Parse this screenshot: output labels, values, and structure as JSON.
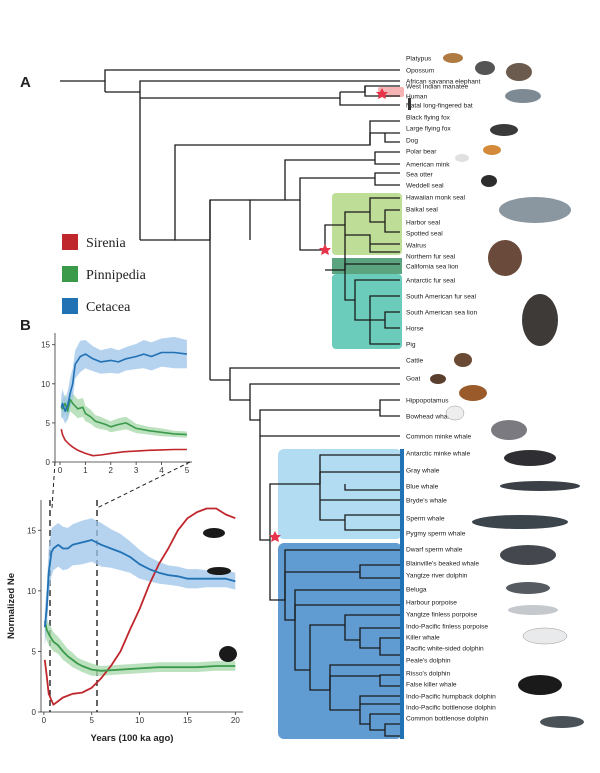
{
  "figure": {
    "panel_a_label": "A",
    "panel_b_label": "B",
    "legend": [
      {
        "name": "Sirenia",
        "color": "#c0272d"
      },
      {
        "name": "Pinnipedia",
        "color": "#3a9a4a"
      },
      {
        "name": "Cetacea",
        "color": "#2171b5"
      }
    ],
    "clade_colors": {
      "sirenia_box": "#f4a6a6",
      "phocidae_box": "#b7d98b",
      "odobenidae_box": "#4a9a72",
      "otariidae_box": "#5cc6b4",
      "mysticeti_box": "#a8d8f0",
      "odontoceti_box": "#4f90cc",
      "branch_marker": "#e8344a"
    },
    "species": [
      "Platypus",
      "Opossum",
      "African savanna elephant",
      "West Indian manatee",
      "Human",
      "Natal long-fingered bat",
      "Black flying fox",
      "Large flying fox",
      "Dog",
      "Polar bear",
      "American mink",
      "Sea otter",
      "Weddell seal",
      "Hawaiian monk seal",
      "Baikal seal",
      "Harbor seal",
      "Spotted seal",
      "Walrus",
      "Northern fur seal",
      "California sea lion",
      "Antarctic fur seal",
      "South American fur seal",
      "South American sea lion",
      "Horse",
      "Pig",
      "Cattle",
      "Goat",
      "Hippopotamus",
      "Bowhead whale",
      "Common minke whale",
      "Antarctic minke whale",
      "Gray whale",
      "Blue whale",
      "Bryde's whale",
      "Sperm whale",
      "Pygmy sperm whale",
      "Dwarf sperm whale",
      "Blainville's beaked whale",
      "Yangtze river dolphin",
      "Beluga",
      "Harbour porpoise",
      "Yangtze finless porpoise",
      "Indo-Pacific finless porpoise",
      "Killer whale",
      "Pacific white-sided dolphin",
      "Peale's dolphin",
      "Risso's dolphin",
      "False killer whale",
      "Indo-Pacific humpback dolphin",
      "Indo-Pacific bottlenose dolphin",
      "Common bottlenose dolphin"
    ]
  },
  "chart_data": [
    {
      "type": "line",
      "id": "inset",
      "title": "",
      "xlabel": "",
      "ylabel": "",
      "xlim": [
        0,
        5.2
      ],
      "ylim": [
        0,
        16.5
      ],
      "xticks": [
        0,
        1,
        2,
        3,
        4,
        5
      ],
      "yticks": [
        0,
        5,
        10,
        15
      ],
      "series": [
        {
          "name": "Sirenia",
          "x": [
            0.05,
            0.1,
            0.2,
            0.35,
            0.5,
            0.7,
            1.0,
            1.3,
            1.6,
            2.0,
            2.5,
            3.0,
            3.5,
            4.0,
            4.5,
            5.0
          ],
          "y": [
            4.2,
            3.5,
            2.8,
            2.3,
            1.9,
            1.5,
            1.1,
            0.8,
            0.9,
            1.1,
            1.3,
            1.4,
            1.5,
            1.55,
            1.6,
            1.6
          ],
          "band": [
            0,
            0,
            0,
            0,
            0,
            0,
            0,
            0,
            0,
            0,
            0,
            0,
            0,
            0,
            0,
            0
          ]
        },
        {
          "name": "Pinnipedia",
          "x": [
            0.05,
            0.1,
            0.2,
            0.3,
            0.4,
            0.5,
            0.7,
            0.9,
            1.0,
            1.2,
            1.4,
            1.6,
            1.8,
            2.0,
            2.3,
            2.6,
            3.0,
            3.5,
            4.0,
            4.5,
            5.0
          ],
          "y": [
            7.0,
            6.8,
            7.5,
            6.5,
            8.0,
            7.5,
            6.8,
            7.0,
            6.2,
            5.8,
            5.2,
            5.0,
            4.8,
            4.5,
            4.8,
            5.0,
            4.3,
            4.0,
            3.8,
            3.6,
            3.5
          ],
          "band": [
            1.0,
            1.2,
            1.2,
            1.2,
            1.5,
            1.3,
            1.2,
            1.2,
            1.0,
            0.9,
            0.8,
            0.8,
            0.7,
            0.7,
            0.8,
            0.8,
            0.6,
            0.5,
            0.5,
            0.4,
            0.4
          ]
        },
        {
          "name": "Cetacea",
          "x": [
            0.05,
            0.1,
            0.2,
            0.3,
            0.4,
            0.5,
            0.6,
            0.8,
            1.0,
            1.3,
            1.6,
            2.0,
            2.3,
            2.6,
            3.0,
            3.3,
            3.6,
            4.0,
            4.5,
            5.0
          ],
          "y": [
            7.0,
            7.5,
            6.5,
            7.2,
            8.8,
            10.0,
            12.5,
            13.5,
            13.8,
            13.2,
            12.8,
            13.0,
            12.8,
            13.2,
            13.5,
            13.8,
            13.5,
            14.0,
            14.0,
            13.8
          ],
          "band": [
            1.5,
            1.8,
            1.6,
            1.8,
            2.0,
            2.0,
            1.8,
            2.0,
            1.8,
            1.6,
            1.5,
            1.6,
            1.5,
            1.5,
            1.6,
            1.8,
            1.8,
            1.8,
            2.0,
            1.8
          ]
        }
      ]
    },
    {
      "type": "line",
      "id": "main",
      "title": "",
      "xlabel": "Years (100 ka ago)",
      "ylabel": "Normalized Ne",
      "xlim": [
        -0.3,
        20.8
      ],
      "ylim": [
        0,
        17.5
      ],
      "xticks": [
        0,
        5,
        10,
        15,
        20
      ],
      "yticks": [
        0,
        5,
        10,
        15
      ],
      "zoom_lines_at": [
        0,
        5
      ],
      "series": [
        {
          "name": "Sirenia",
          "x": [
            0.1,
            0.3,
            0.5,
            1.0,
            1.5,
            2.0,
            3.0,
            4.0,
            5.0,
            6.0,
            7.0,
            8.0,
            9.0,
            10.0,
            11.0,
            12.0,
            13.0,
            14.0,
            15.0,
            16.0,
            17.0,
            18.0,
            19.0,
            20.0
          ],
          "y": [
            4.3,
            3.0,
            1.5,
            0.6,
            0.9,
            1.2,
            1.5,
            1.6,
            2.0,
            2.8,
            3.8,
            5.0,
            6.8,
            8.5,
            10.5,
            12.2,
            13.5,
            15.0,
            16.0,
            16.5,
            16.8,
            16.8,
            16.3,
            16.0
          ],
          "band": [
            0,
            0,
            0,
            0,
            0,
            0,
            0,
            0,
            0,
            0,
            0,
            0,
            0,
            0,
            0,
            0,
            0,
            0,
            0,
            0,
            0,
            0,
            0,
            0
          ]
        },
        {
          "name": "Pinnipedia",
          "x": [
            0.1,
            0.3,
            0.6,
            1.0,
            1.5,
            2.0,
            2.5,
            3.0,
            3.5,
            4.0,
            5.0,
            6.0,
            8.0,
            10.0,
            12.0,
            14.0,
            16.0,
            18.0,
            20.0
          ],
          "y": [
            7.5,
            6.8,
            6.3,
            5.8,
            5.5,
            5.0,
            4.6,
            4.3,
            4.0,
            3.8,
            3.5,
            3.4,
            3.5,
            3.6,
            3.7,
            3.7,
            3.7,
            3.8,
            3.8
          ],
          "band": [
            1.0,
            0.9,
            0.9,
            0.8,
            0.7,
            0.7,
            0.6,
            0.6,
            0.5,
            0.5,
            0.5,
            0.4,
            0.4,
            0.4,
            0.4,
            0.4,
            0.4,
            0.4,
            0.4
          ]
        },
        {
          "name": "Cetacea",
          "x": [
            0.1,
            0.3,
            0.5,
            0.8,
            1.0,
            1.5,
            2.0,
            2.5,
            3.0,
            4.0,
            5.0,
            6.0,
            7.0,
            8.0,
            9.0,
            10.0,
            11.0,
            12.0,
            13.0,
            14.0,
            15.0,
            16.0,
            17.0,
            18.0,
            19.0,
            20.0
          ],
          "y": [
            7.0,
            8.5,
            11.5,
            13.2,
            13.5,
            13.8,
            13.5,
            13.5,
            13.8,
            14.0,
            14.2,
            13.8,
            13.5,
            13.2,
            12.8,
            12.2,
            11.8,
            11.5,
            11.3,
            11.2,
            11.0,
            11.0,
            11.0,
            11.0,
            11.0,
            10.8
          ],
          "band": [
            1.5,
            1.8,
            2.0,
            2.0,
            1.8,
            1.8,
            1.8,
            1.7,
            1.7,
            1.8,
            1.8,
            1.8,
            1.6,
            1.5,
            1.3,
            1.2,
            1.0,
            0.9,
            0.8,
            0.8,
            0.8,
            0.8,
            0.7,
            0.7,
            0.7,
            0.7
          ]
        }
      ]
    }
  ]
}
